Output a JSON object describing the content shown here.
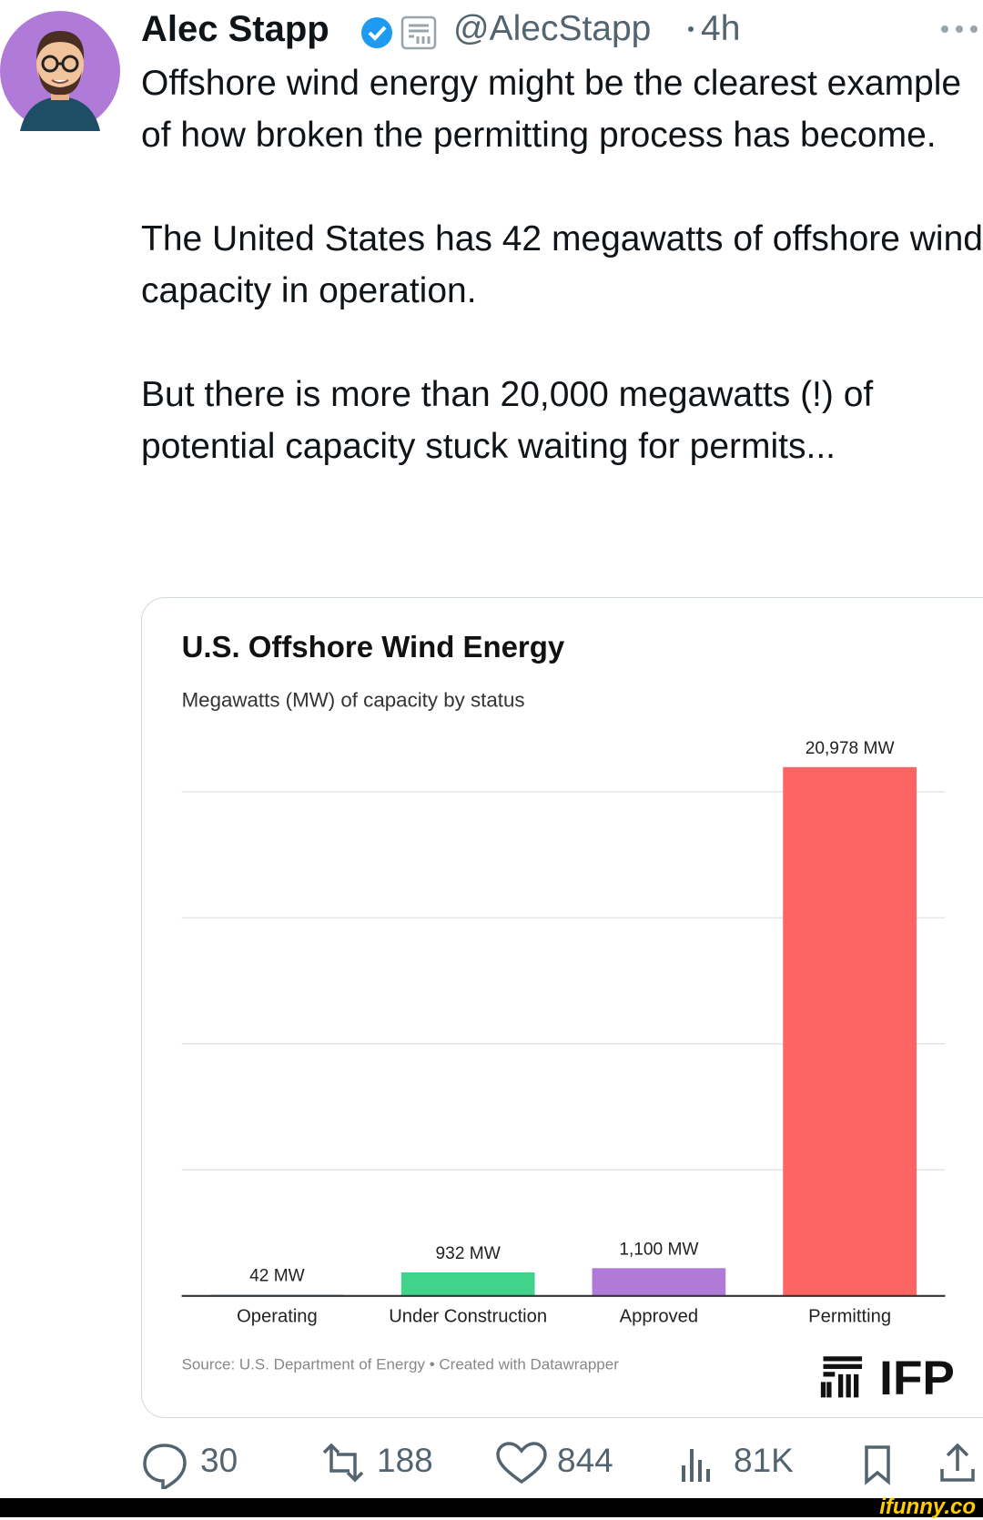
{
  "author": {
    "name": "Alec Stapp",
    "handle": "@AlecStapp",
    "time": "4h"
  },
  "tweet": {
    "paragraphs": [
      "Offshore wind energy might be the clearest example of how broken the permitting process has become.",
      "The United States has 42 megawatts of offshore wind capacity in operation.",
      "But there is more than 20,000 megawatts (!) of potential capacity stuck waiting for permits..."
    ]
  },
  "chart_data": {
    "type": "bar",
    "title": "U.S. Offshore Wind Energy",
    "subtitle": "Megawatts (MW) of capacity by status",
    "categories": [
      "Operating",
      "Under Construction",
      "Approved",
      "Permitting"
    ],
    "values": [
      42,
      932,
      1100,
      20978
    ],
    "value_labels": [
      "42 MW",
      "932 MW",
      "1,100 MW",
      "20,978 MW"
    ],
    "colors": [
      "#4a90c8",
      "#3fd48a",
      "#b07ad8",
      "#ff6464"
    ],
    "ylim": [
      0,
      21000
    ],
    "gridlines": [
      5000,
      10000,
      15000,
      20000
    ],
    "source": "Source: U.S. Department of Energy • Created with Datawrapper",
    "logo": "IFP"
  },
  "actions": {
    "replies": "30",
    "retweets": "188",
    "likes": "844",
    "views": "81K"
  },
  "watermark": "ifunny.co"
}
